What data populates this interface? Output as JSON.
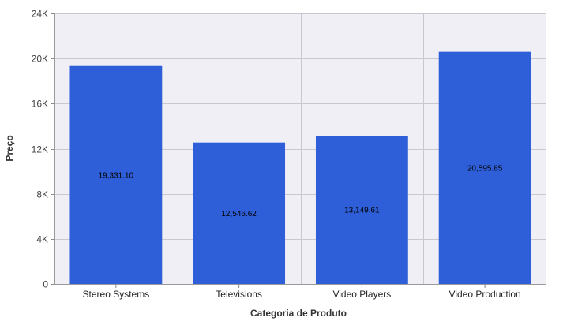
{
  "chart_data": {
    "type": "bar",
    "title": "",
    "xlabel": "Categoria de Produto",
    "ylabel": "Preço",
    "categories": [
      "Stereo Systems",
      "Televisions",
      "Video Players",
      "Video Production"
    ],
    "values": [
      19331.1,
      12546.62,
      13149.61,
      20595.85
    ],
    "data_labels": [
      "19,331.10",
      "12,546.62",
      "13,149.61",
      "20,595.85"
    ],
    "ylim": [
      0,
      24000
    ],
    "yticks": [
      0,
      4000,
      8000,
      12000,
      16000,
      20000,
      24000
    ],
    "ytick_labels": [
      "0",
      "4K",
      "8K",
      "12K",
      "16K",
      "20K",
      "24K"
    ],
    "grid": true,
    "legend": "none",
    "colors": {
      "bar": "#2f5fd8",
      "plot_background": "#efeff5",
      "grid": "#c8c8d2"
    }
  }
}
